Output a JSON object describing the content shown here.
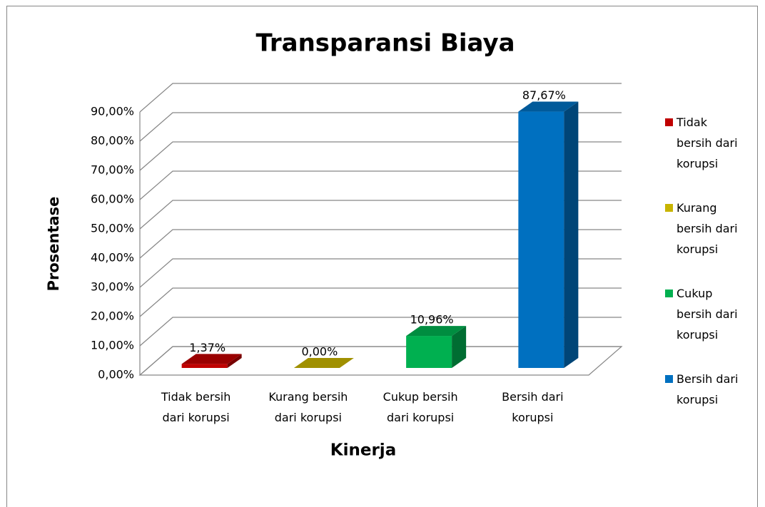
{
  "chart_data": {
    "type": "bar3d",
    "title": "Transparansi Biaya",
    "x_label": "Kinerja",
    "y_label": "Prosentase",
    "categories": [
      "Tidak bersih dari korupsi",
      "Kurang bersih dari korupsi",
      "Cukup bersih dari korupsi",
      "Bersih dari korupsi"
    ],
    "values": [
      1.37,
      0,
      10.96,
      87.67
    ],
    "value_labels": [
      "1,37%",
      "0,00%",
      "10,96%",
      "87,67%"
    ],
    "colors": [
      "#c00000",
      "#c8b400",
      "#00b050",
      "#0070c0"
    ],
    "ylim": [
      0,
      90
    ],
    "yticks": [
      {
        "value": 0,
        "label": "0,00%"
      },
      {
        "value": 10,
        "label": "10,00%"
      },
      {
        "value": 20,
        "label": "20,00%"
      },
      {
        "value": 30,
        "label": "30,00%"
      },
      {
        "value": 40,
        "label": "40,00%"
      },
      {
        "value": 50,
        "label": "50,00%"
      },
      {
        "value": 60,
        "label": "60,00%"
      },
      {
        "value": 70,
        "label": "70,00%"
      },
      {
        "value": 80,
        "label": "80,00%"
      },
      {
        "value": 90,
        "label": "90,00%"
      }
    ],
    "grid": true,
    "legend": "right"
  }
}
